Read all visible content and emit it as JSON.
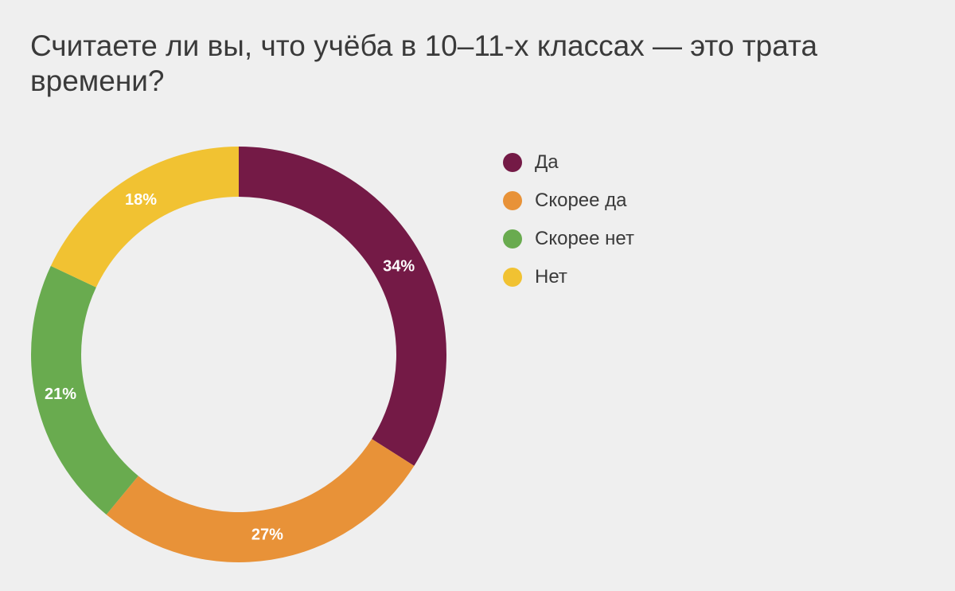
{
  "chart_data": {
    "type": "pie",
    "variant": "donut",
    "title": "Считаете ли вы, что учёба в 10–11-х классах — это трата времени?",
    "categories": [
      "Да",
      "Скорее да",
      "Скорее нет",
      "Нет"
    ],
    "values": [
      34,
      27,
      21,
      18
    ],
    "value_labels": [
      "34%",
      "27%",
      "21%",
      "18%"
    ],
    "colors": [
      "#741a46",
      "#e89238",
      "#69ab4f",
      "#f1c232"
    ],
    "unit": "%",
    "start": "top",
    "direction": "clockwise",
    "legend_position": "right"
  }
}
